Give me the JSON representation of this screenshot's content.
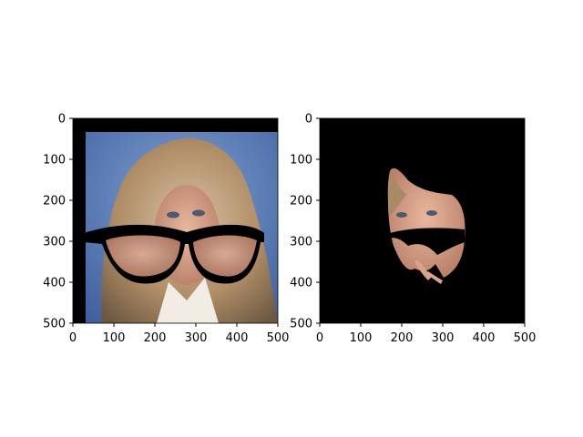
{
  "figure": {
    "background": "#ffffff",
    "panels": [
      {
        "id": "left",
        "description_icon": "photo-with-glasses-overlay",
        "x_ticks": [
          "0",
          "100",
          "200",
          "300",
          "400",
          "500"
        ],
        "y_ticks": [
          "0",
          "100",
          "200",
          "300",
          "400",
          "500"
        ],
        "xlim": [
          0,
          500
        ],
        "ylim": [
          0,
          500
        ]
      },
      {
        "id": "right",
        "description_icon": "masked-face-cutout",
        "x_ticks": [
          "0",
          "100",
          "200",
          "300",
          "400",
          "500"
        ],
        "y_ticks": [
          "0",
          "100",
          "200",
          "300",
          "400",
          "500"
        ],
        "xlim": [
          0,
          500
        ],
        "ylim": [
          0,
          500
        ]
      }
    ]
  },
  "colors": {
    "sky_blue": "#5b7cb8",
    "hair": "#b99a76",
    "skin": "#d9a48a",
    "frame": "#000000"
  }
}
